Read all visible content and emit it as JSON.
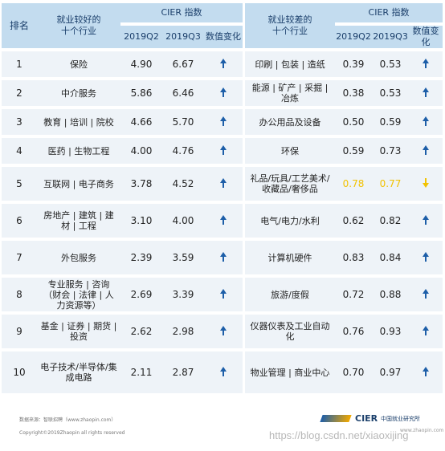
{
  "header": {
    "rank": "排名",
    "good_title": "就业较好的\n十个行业",
    "bad_title": "就业较差的\n十个行业",
    "index_title": "CIER 指数",
    "q2": "2019Q2",
    "q3": "2019Q3",
    "change": "数值变化"
  },
  "rows": [
    {
      "rank": "1",
      "good": "保险",
      "g_q2": "4.90",
      "g_q3": "6.67",
      "bad": "印刷 | 包装 | 造纸",
      "b_q2": "0.39",
      "b_q3": "0.53"
    },
    {
      "rank": "2",
      "good": "中介服务",
      "g_q2": "5.86",
      "g_q3": "6.46",
      "bad": "能源 | 矿产 | 采掘 | 冶炼",
      "b_q2": "0.38",
      "b_q3": "0.53"
    },
    {
      "rank": "3",
      "good": "教育 | 培训 | 院校",
      "g_q2": "4.66",
      "g_q3": "5.70",
      "bad": "办公用品及设备",
      "b_q2": "0.50",
      "b_q3": "0.59"
    },
    {
      "rank": "4",
      "good": "医药 | 生物工程",
      "g_q2": "4.00",
      "g_q3": "4.76",
      "bad": "环保",
      "b_q2": "0.59",
      "b_q3": "0.73"
    },
    {
      "rank": "5",
      "good": "互联网 | 电子商务",
      "g_q2": "3.78",
      "g_q3": "4.52",
      "bad": "礼品/玩具/工艺美术/收藏品/奢侈品",
      "b_q2": "0.78",
      "b_q3": "0.77"
    },
    {
      "rank": "6",
      "good": "房地产 | 建筑 | 建材 | 工程",
      "g_q2": "3.10",
      "g_q3": "4.00",
      "bad": "电气/电力/水利",
      "b_q2": "0.62",
      "b_q3": "0.82"
    },
    {
      "rank": "7",
      "good": "外包服务",
      "g_q2": "2.39",
      "g_q3": "3.59",
      "bad": "计算机硬件",
      "b_q2": "0.83",
      "b_q3": "0.84"
    },
    {
      "rank": "8",
      "good": "专业服务 | 咨询（财会 | 法律 | 人力资源等）",
      "g_q2": "2.69",
      "g_q3": "3.39",
      "bad": "旅游/度假",
      "b_q2": "0.72",
      "b_q3": "0.88"
    },
    {
      "rank": "9",
      "good": "基金 | 证券 | 期货 | 投资",
      "g_q2": "2.62",
      "g_q3": "2.98",
      "bad": "仪器仪表及工业自动化",
      "b_q2": "0.76",
      "b_q3": "0.93"
    },
    {
      "rank": "10",
      "good": "电子技术/半导体/集成电路",
      "g_q2": "2.11",
      "g_q3": "2.87",
      "bad": "物业管理 | 商业中心",
      "b_q2": "0.70",
      "b_q3": "0.97"
    }
  ],
  "colors": {
    "up_arrow": "#1d5ea8",
    "down_arrow": "#f2c200",
    "header_bg": "#c3dcef",
    "row_bg": "#eef3f8"
  },
  "footer": {
    "source": "数据来源：智联招聘（www.zhaopin.com）",
    "copyright": "Copyright©2019Zhaopin all rights reserved",
    "logo_brand": "CIER",
    "logo_cn": "中国就业研究所",
    "logo_url": "www.zhaopin.com",
    "watermark": "https://blog.csdn.net/xiaoxijing"
  }
}
